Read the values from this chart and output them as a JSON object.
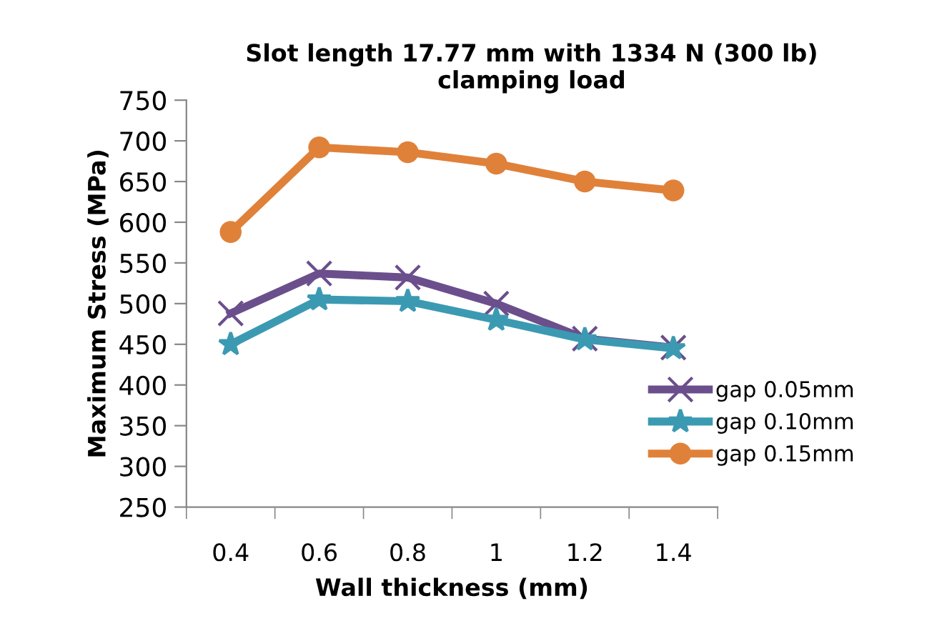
{
  "chart_data": {
    "type": "line",
    "title": "Slot length 17.77 mm with 1334 N (300 lb)\nclamping load",
    "xlabel": "Wall thickness (mm)",
    "ylabel": "Maximum Stress (MPa)",
    "categories": [
      "0.4",
      "0.6",
      "0.8",
      "1",
      "1.2",
      "1.4"
    ],
    "series": [
      {
        "name": "gap 0.05mm",
        "color": "#6b4f8c",
        "marker": "cross",
        "values": [
          488,
          537,
          532,
          500,
          457,
          446
        ]
      },
      {
        "name": "gap 0.10mm",
        "color": "#3b9ab2",
        "marker": "star",
        "values": [
          450,
          505,
          503,
          480,
          456,
          445
        ]
      },
      {
        "name": "gap 0.15mm",
        "color": "#e0813a",
        "marker": "circle",
        "values": [
          588,
          692,
          686,
          672,
          650,
          639
        ]
      }
    ],
    "ylim": [
      250,
      750
    ],
    "yticks": [
      250,
      300,
      350,
      400,
      450,
      500,
      550,
      600,
      650,
      700,
      750
    ],
    "grid": false,
    "legend": "right",
    "line_style": "solid"
  }
}
